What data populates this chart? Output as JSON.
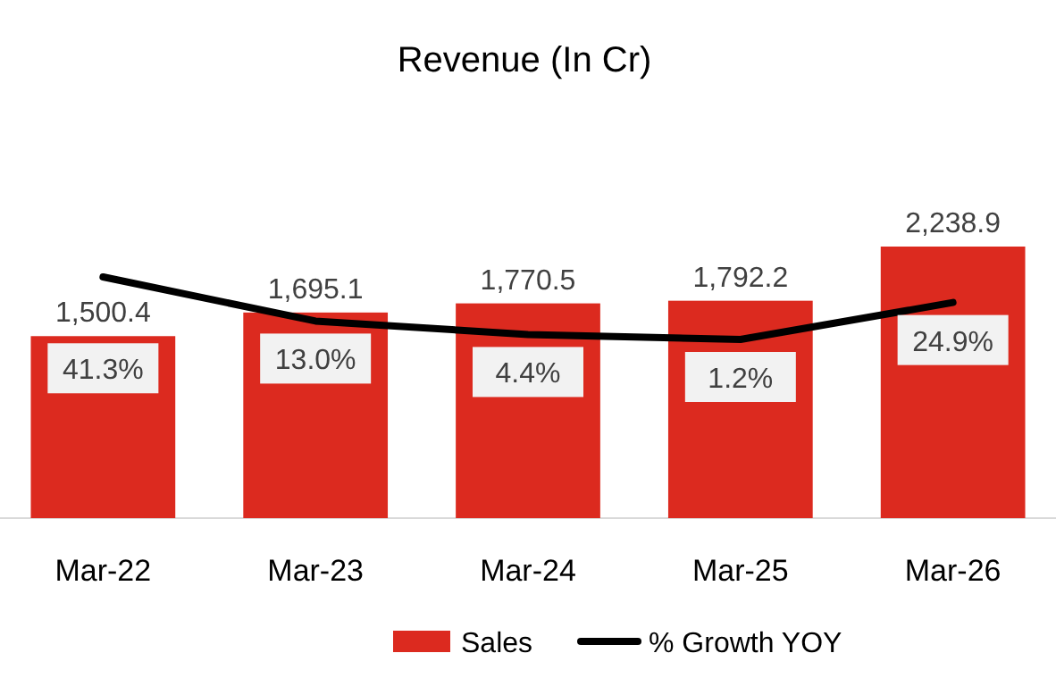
{
  "chart_data": {
    "type": "bar",
    "title": "Revenue (In Cr)",
    "categories": [
      "Mar-22",
      "Mar-23",
      "Mar-24",
      "Mar-25",
      "Mar-26"
    ],
    "series": [
      {
        "name": "Sales",
        "color": "#dc2a1f",
        "values": [
          1500.4,
          1695.1,
          1770.5,
          1792.2,
          2238.9
        ],
        "value_labels": [
          "1,500.4",
          "1,695.1",
          "1,770.5",
          "1,792.2",
          "2,238.9"
        ]
      },
      {
        "name": "% Growth YOY",
        "type": "line",
        "axis": "y2",
        "color": "#000000",
        "values": [
          41.3,
          13.0,
          4.4,
          1.2,
          24.9
        ],
        "value_labels": [
          "41.3%",
          "13.0%",
          "4.4%",
          "1.2%",
          "24.9%"
        ]
      }
    ],
    "tick_labels": "x",
    "legend": "bottom"
  }
}
